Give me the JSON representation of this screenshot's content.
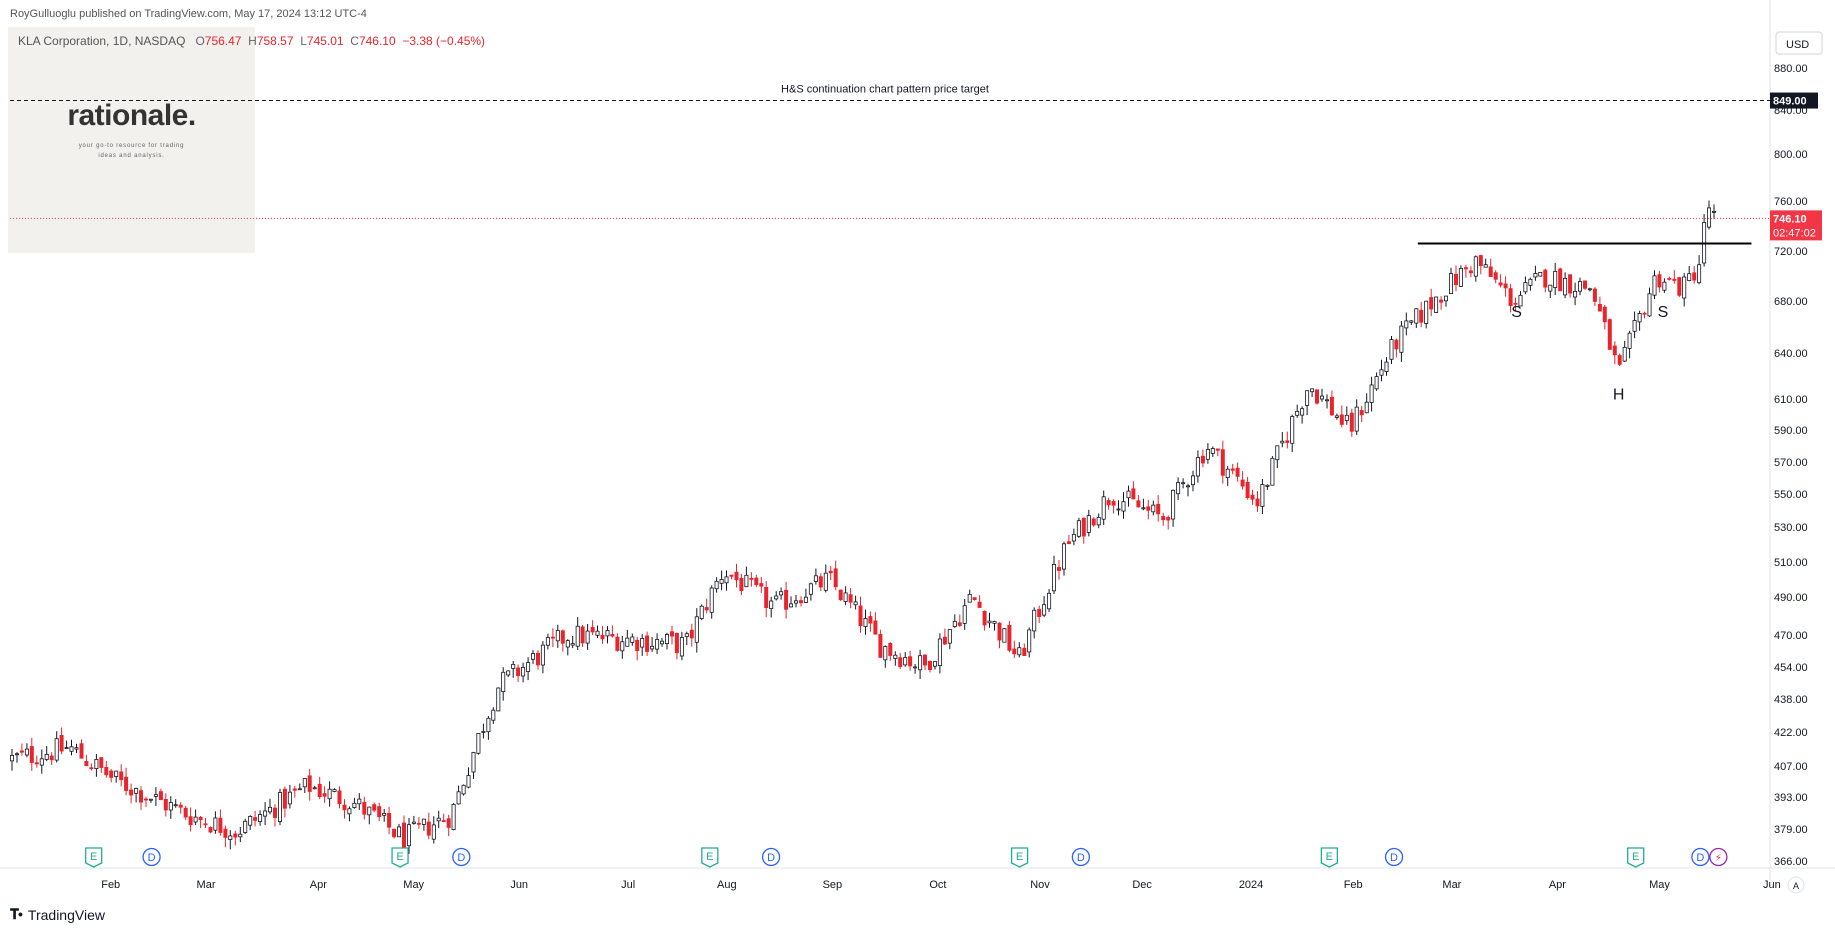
{
  "header": {
    "published": "RoyGulluoglu published on TradingView.com, May 17, 2024 13:12 UTC-4",
    "symbol": "KLA Corporation, 1D, NASDAQ",
    "o_label": "O",
    "o_value": "756.47",
    "h_label": "H",
    "h_value": "758.57",
    "l_label": "L",
    "l_value": "745.01",
    "c_label": "C",
    "c_value": "746.10",
    "change": "−3.38 (−0.45%)"
  },
  "logo": {
    "title": "rationale.",
    "subtitle_line1": "your go-to resource for trading",
    "subtitle_line2": "ideas and analysis."
  },
  "footer": {
    "brand": "TradingView",
    "icon": "tradingview-logo-icon"
  },
  "price_scale": {
    "currency": "USD",
    "target_label": "849.00",
    "last_price_label": "746.10",
    "countdown_label": "02:47:02",
    "auto_label": "A"
  },
  "colors": {
    "up": "#22ab94",
    "down": "#f23645",
    "candle_up_display": "#131722",
    "candle_down_display": "#e8242d",
    "last_price": "#f23645",
    "target_line": "#131722"
  },
  "chart_data": {
    "type": "candlestick",
    "title": "KLA Corporation, 1D, NASDAQ",
    "y_axis_ticks": [
      366,
      379,
      393,
      407,
      422,
      438,
      454,
      470,
      490,
      510,
      530,
      550,
      570,
      590,
      610,
      640,
      680,
      720,
      760,
      800,
      840,
      880
    ],
    "y_tick_labels": [
      "366.00",
      "379.00",
      "393.00",
      "407.00",
      "422.00",
      "438.00",
      "454.00",
      "470.00",
      "490.00",
      "510.00",
      "530.00",
      "550.00",
      "570.00",
      "590.00",
      "610.00",
      "640.00",
      "680.00",
      "720.00",
      "760.00",
      "800.00",
      "840.00",
      "880.00"
    ],
    "x_axis_labels": [
      "Feb",
      "Mar",
      "Apr",
      "May",
      "Jun",
      "Jul",
      "Aug",
      "Sep",
      "Oct",
      "Nov",
      "Dec",
      "2024",
      "Feb",
      "Mar",
      "Apr",
      "May",
      "Jun"
    ],
    "close_trend": [
      [
        "2023-01-03",
        410
      ],
      [
        "2023-01-20",
        415
      ],
      [
        "2023-02-03",
        400
      ],
      [
        "2023-02-24",
        385
      ],
      [
        "2023-03-10",
        378
      ],
      [
        "2023-03-31",
        398
      ],
      [
        "2023-04-14",
        390
      ],
      [
        "2023-04-28",
        375
      ],
      [
        "2023-05-12",
        385
      ],
      [
        "2023-05-26",
        445
      ],
      [
        "2023-06-15",
        470
      ],
      [
        "2023-07-03",
        468
      ],
      [
        "2023-07-20",
        465
      ],
      [
        "2023-07-31",
        505
      ],
      [
        "2023-08-15",
        485
      ],
      [
        "2023-08-31",
        500
      ],
      [
        "2023-09-15",
        465
      ],
      [
        "2023-09-28",
        454
      ],
      [
        "2023-10-12",
        490
      ],
      [
        "2023-10-26",
        458
      ],
      [
        "2023-11-09",
        520
      ],
      [
        "2023-11-22",
        550
      ],
      [
        "2023-12-07",
        535
      ],
      [
        "2023-12-20",
        580
      ],
      [
        "2024-01-04",
        545
      ],
      [
        "2024-01-19",
        620
      ],
      [
        "2024-01-31",
        590
      ],
      [
        "2024-02-14",
        650
      ],
      [
        "2024-02-28",
        690
      ],
      [
        "2024-03-08",
        712
      ],
      [
        "2024-03-19",
        680
      ],
      [
        "2024-03-28",
        700
      ],
      [
        "2024-04-11",
        690
      ],
      [
        "2024-04-19",
        625
      ],
      [
        "2024-04-30",
        700
      ],
      [
        "2024-05-08",
        690
      ],
      [
        "2024-05-13",
        712
      ],
      [
        "2024-05-15",
        758
      ],
      [
        "2024-05-17",
        746.1
      ]
    ],
    "pattern": {
      "name": "Head and Shoulders continuation",
      "neckline_price": 726,
      "target_price": 849.0,
      "target_label": "H&S continuation chart pattern price target",
      "markers": [
        {
          "label": "S",
          "date": "2024-03-20",
          "price": 680
        },
        {
          "label": "H",
          "date": "2024-04-19",
          "price": 620
        },
        {
          "label": "S",
          "date": "2024-05-02",
          "price": 680
        }
      ]
    },
    "events": [
      {
        "type": "E",
        "date": "2023-01-27"
      },
      {
        "type": "D",
        "date": "2023-02-13"
      },
      {
        "type": "E",
        "date": "2023-04-27"
      },
      {
        "type": "D",
        "date": "2023-05-15"
      },
      {
        "type": "E",
        "date": "2023-07-27"
      },
      {
        "type": "D",
        "date": "2023-08-14"
      },
      {
        "type": "E",
        "date": "2023-10-26"
      },
      {
        "type": "D",
        "date": "2023-11-13"
      },
      {
        "type": "E",
        "date": "2024-01-25"
      },
      {
        "type": "D",
        "date": "2024-02-13"
      },
      {
        "type": "E",
        "date": "2024-04-24"
      },
      {
        "type": "D",
        "date": "2024-05-13"
      }
    ],
    "last_price": 746.1,
    "currency": "USD"
  }
}
